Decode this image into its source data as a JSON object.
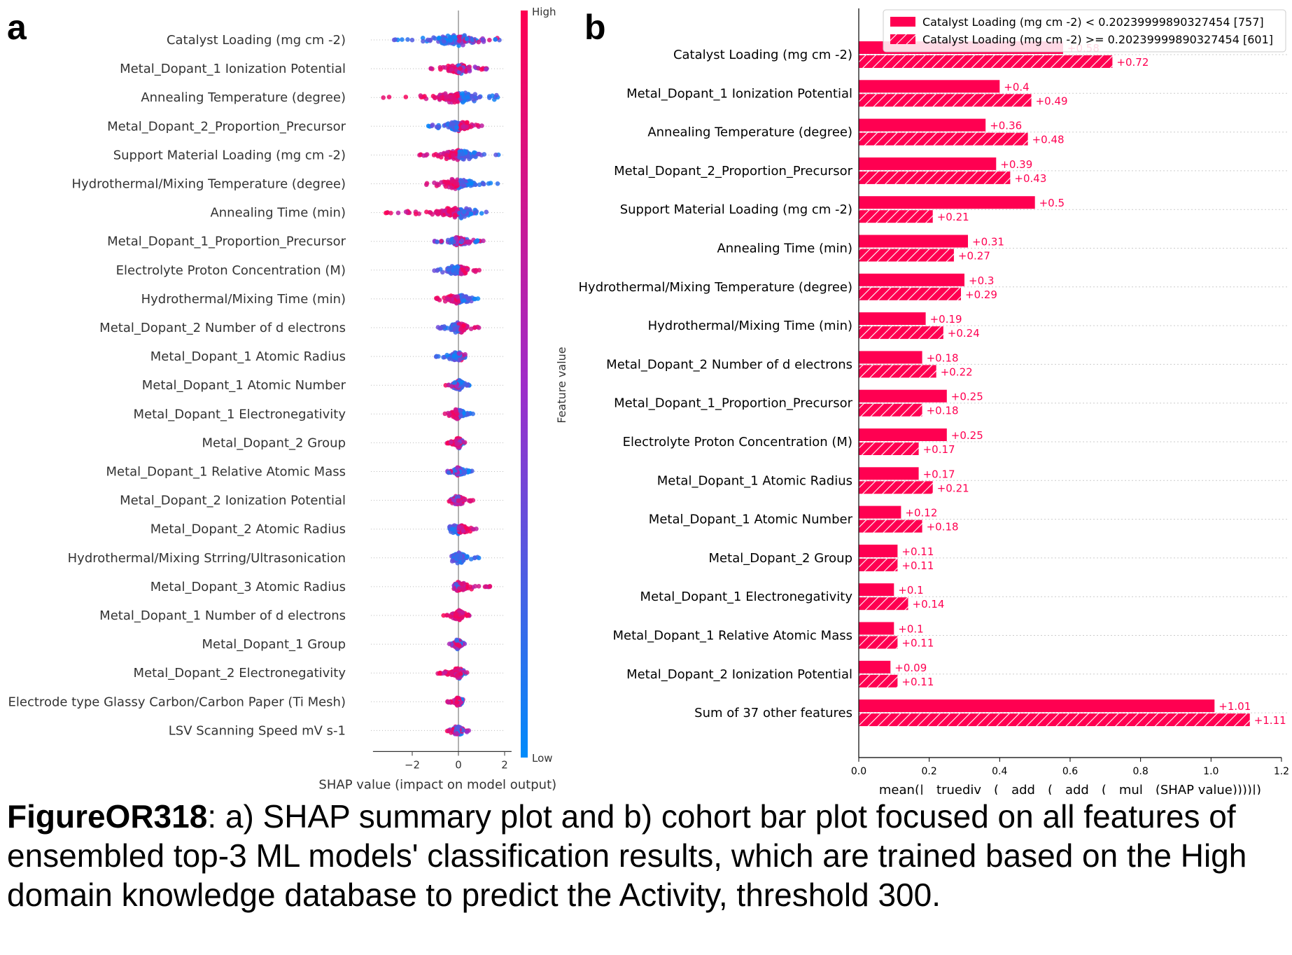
{
  "panel_a_letter": "a",
  "panel_b_letter": "b",
  "caption": {
    "label": "FigureOR318",
    "text": ": a) SHAP summary plot and b) cohort bar plot focused on all features of ensembled top-3 ML models' classification results, which are trained based on the High domain knowledge database to predict the Activity, threshold 300."
  },
  "colors": {
    "high": "#ff0051",
    "low": "#008bfb",
    "mid": "#9f2cc9",
    "axis": "#333333",
    "grid": "#cccccc"
  },
  "chart_data": [
    {
      "type": "scatter",
      "subtype": "shap-beeswarm",
      "xlabel": "SHAP value (impact on model output)",
      "xlim": [
        -3.7,
        2.3
      ],
      "xticks": [
        -2,
        0,
        2
      ],
      "xtick_labels": [
        "−2",
        "0",
        "2"
      ],
      "colorbar": {
        "label": "Feature value",
        "high": "High",
        "low": "Low"
      },
      "features": [
        {
          "name": "Catalyst Loading (mg cm -2)",
          "min": -2.9,
          "max": 2.0,
          "neg_color": "low",
          "pos_color": "mixed"
        },
        {
          "name": "Metal_Dopant_1 Ionization Potential",
          "min": -1.2,
          "max": 1.4,
          "neg_color": "high",
          "pos_color": "mixed"
        },
        {
          "name": "Annealing Temperature (degree)",
          "min": -3.4,
          "max": 1.8,
          "neg_color": "high",
          "pos_color": "low"
        },
        {
          "name": "Metal_Dopant_2_Proportion_Precursor",
          "min": -1.5,
          "max": 1.2,
          "neg_color": "low",
          "pos_color": "high"
        },
        {
          "name": "Support Material Loading (mg cm -2)",
          "min": -1.8,
          "max": 2.0,
          "neg_color": "high",
          "pos_color": "low"
        },
        {
          "name": "Hydrothermal/Mixing Temperature (degree)",
          "min": -1.4,
          "max": 1.9,
          "neg_color": "high",
          "pos_color": "low"
        },
        {
          "name": "Annealing Time (min)",
          "min": -3.5,
          "max": 1.3,
          "neg_color": "high",
          "pos_color": "low"
        },
        {
          "name": "Metal_Dopant_1_Proportion_Precursor",
          "min": -1.1,
          "max": 1.1,
          "neg_color": "mixed",
          "pos_color": "mixed"
        },
        {
          "name": "Electrolyte Proton Concentration (M)",
          "min": -1.3,
          "max": 1.0,
          "neg_color": "low",
          "pos_color": "high"
        },
        {
          "name": "Hydrothermal/Mixing Time (min)",
          "min": -1.0,
          "max": 1.2,
          "neg_color": "high",
          "pos_color": "low"
        },
        {
          "name": "Metal_Dopant_2 Number of d electrons",
          "min": -0.9,
          "max": 0.9,
          "neg_color": "low",
          "pos_color": "high"
        },
        {
          "name": "Metal_Dopant_1 Atomic Radius",
          "min": -1.0,
          "max": 0.3,
          "neg_color": "low",
          "pos_color": "mixed"
        },
        {
          "name": "Metal_Dopant_1 Atomic Number",
          "min": -0.6,
          "max": 0.5,
          "neg_color": "mixed",
          "pos_color": "low"
        },
        {
          "name": "Metal_Dopant_1 Electronegativity",
          "min": -0.6,
          "max": 0.7,
          "neg_color": "high",
          "pos_color": "low"
        },
        {
          "name": "Metal_Dopant_2 Group",
          "min": -0.5,
          "max": 0.3,
          "neg_color": "high",
          "pos_color": "mixed"
        },
        {
          "name": "Metal_Dopant_1 Relative Atomic Mass",
          "min": -0.5,
          "max": 0.6,
          "neg_color": "mixed",
          "pos_color": "low"
        },
        {
          "name": "Metal_Dopant_2 Ionization Potential",
          "min": -0.5,
          "max": 0.7,
          "neg_color": "mixed",
          "pos_color": "high"
        },
        {
          "name": "Metal_Dopant_2 Atomic Radius",
          "min": -0.4,
          "max": 1.1,
          "neg_color": "low",
          "pos_color": "high"
        },
        {
          "name": "Hydrothermal/Mixing Strring/Ultrasonication",
          "min": -0.3,
          "max": 0.9,
          "neg_color": "low",
          "pos_color": "low"
        },
        {
          "name": "Metal_Dopant_3 Atomic Radius",
          "min": -0.2,
          "max": 1.4,
          "neg_color": "mixed",
          "pos_color": "high"
        },
        {
          "name": "Metal_Dopant_1 Number of d electrons",
          "min": -0.7,
          "max": 0.5,
          "neg_color": "high",
          "pos_color": "high"
        },
        {
          "name": "Metal_Dopant_1 Group",
          "min": -0.4,
          "max": 0.3,
          "neg_color": "mixed",
          "pos_color": "mixed"
        },
        {
          "name": "Metal_Dopant_2 Electronegativity",
          "min": -0.9,
          "max": 0.4,
          "neg_color": "high",
          "pos_color": "mixed"
        },
        {
          "name": "Electrode type Glassy Carbon/Carbon Paper (Ti Mesh)",
          "min": -0.5,
          "max": 0.2,
          "neg_color": "high",
          "pos_color": "mixed"
        },
        {
          "name": "LSV Scanning Speed mV s-1",
          "min": -0.6,
          "max": 0.5,
          "neg_color": "mixed",
          "pos_color": "mixed"
        }
      ]
    },
    {
      "type": "bar",
      "subtype": "horizontal-cohort",
      "xlabel": "mean(|__truediv__(__add__(__add__(__mul__(SHAP value))))|)",
      "xlim": [
        0,
        1.2
      ],
      "xticks": [
        0.0,
        0.2,
        0.4,
        0.6,
        0.8,
        1.0,
        1.2
      ],
      "xtick_labels": [
        "0.0",
        "0.2",
        "0.4",
        "0.6",
        "0.8",
        "1.0",
        "1.2"
      ],
      "legend": {
        "placement": "top-right",
        "entries": [
          "Catalyst Loading (mg cm -2) < 0.20239999890327454 [757]",
          "Catalyst Loading (mg cm -2) >= 0.20239999890327454 [601]"
        ]
      },
      "categories": [
        "Catalyst Loading (mg cm -2)",
        "Metal_Dopant_1 Ionization Potential",
        "Annealing Temperature (degree)",
        "Metal_Dopant_2_Proportion_Precursor",
        "Support Material Loading (mg cm -2)",
        "Annealing Time (min)",
        "Hydrothermal/Mixing Temperature (degree)",
        "Hydrothermal/Mixing Time (min)",
        "Metal_Dopant_2 Number of d electrons",
        "Metal_Dopant_1_Proportion_Precursor",
        "Electrolyte Proton Concentration (M)",
        "Metal_Dopant_1 Atomic Radius",
        "Metal_Dopant_1 Atomic Number",
        "Metal_Dopant_2 Group",
        "Metal_Dopant_1 Electronegativity",
        "Metal_Dopant_1 Relative Atomic Mass",
        "Metal_Dopant_2 Ionization Potential",
        "Sum of 37 other features"
      ],
      "series": [
        {
          "name": "Catalyst Loading (mg cm -2) < 0.20239999890327454 [757]",
          "pattern": "solid",
          "values": [
            0.58,
            0.4,
            0.36,
            0.39,
            0.5,
            0.31,
            0.3,
            0.19,
            0.18,
            0.25,
            0.25,
            0.17,
            0.12,
            0.11,
            0.1,
            0.1,
            0.09,
            1.01
          ],
          "labels": [
            "+0.58",
            "+0.4",
            "+0.36",
            "+0.39",
            "+0.5",
            "+0.31",
            "+0.3",
            "+0.19",
            "+0.18",
            "+0.25",
            "+0.25",
            "+0.17",
            "+0.12",
            "+0.11",
            "+0.1",
            "+0.1",
            "+0.09",
            "+1.01"
          ]
        },
        {
          "name": "Catalyst Loading (mg cm -2) >= 0.20239999890327454 [601]",
          "pattern": "hatched",
          "values": [
            0.72,
            0.49,
            0.48,
            0.43,
            0.21,
            0.27,
            0.29,
            0.24,
            0.22,
            0.18,
            0.17,
            0.21,
            0.18,
            0.11,
            0.14,
            0.11,
            0.11,
            1.11
          ],
          "labels": [
            "+0.72",
            "+0.49",
            "+0.48",
            "+0.43",
            "+0.21",
            "+0.27",
            "+0.29",
            "+0.24",
            "+0.22",
            "+0.18",
            "+0.17",
            "+0.21",
            "+0.18",
            "+0.11",
            "+0.14",
            "+0.11",
            "+0.11",
            "+1.11"
          ]
        }
      ]
    }
  ]
}
